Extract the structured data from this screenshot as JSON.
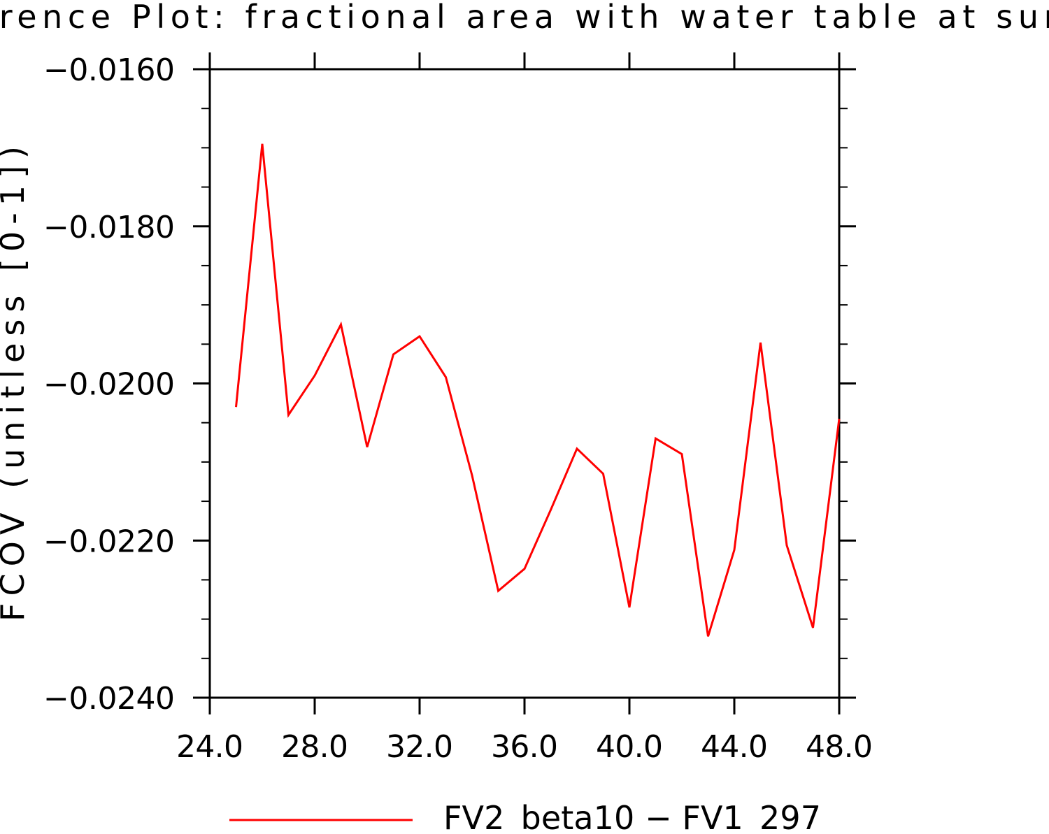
{
  "chart_data": {
    "type": "line",
    "title": "Difference Plot: fractional area with water table at surface",
    "ylabel": "FCOV   (unitless [0-1])",
    "xlabel": "",
    "xlim": [
      24.0,
      48.0
    ],
    "ylim": [
      -0.024,
      -0.016
    ],
    "x_ticks": [
      24.0,
      28.0,
      32.0,
      36.0,
      40.0,
      44.0,
      48.0
    ],
    "x_tick_labels": [
      "24.0",
      "28.0",
      "32.0",
      "36.0",
      "40.0",
      "44.0",
      "48.0"
    ],
    "y_ticks": [
      -0.016,
      -0.018,
      -0.02,
      -0.022,
      -0.024
    ],
    "y_tick_labels": [
      "−0.0160",
      "−0.0180",
      "−0.0200",
      "−0.0220",
      "−0.0240"
    ],
    "grid": false,
    "legend_position": "bottom-center",
    "series": [
      {
        "name": "FV2_beta10 − FV1_297",
        "color": "#ff0000",
        "x": [
          25,
          26,
          27,
          28,
          29,
          30,
          31,
          32,
          33,
          34,
          35,
          36,
          37,
          38,
          39,
          40,
          41,
          42,
          43,
          44,
          45,
          46,
          47,
          48
        ],
        "y": [
          -0.0203,
          -0.01695,
          -0.0204,
          -0.0199,
          -0.01925,
          -0.02081,
          -0.01963,
          -0.0194,
          -0.01992,
          -0.02117,
          -0.02264,
          -0.02236,
          -0.02161,
          -0.02083,
          -0.02115,
          -0.02285,
          -0.0207,
          -0.0209,
          -0.02322,
          -0.02212,
          -0.01948,
          -0.02206,
          -0.02311,
          -0.02045
        ]
      }
    ]
  }
}
